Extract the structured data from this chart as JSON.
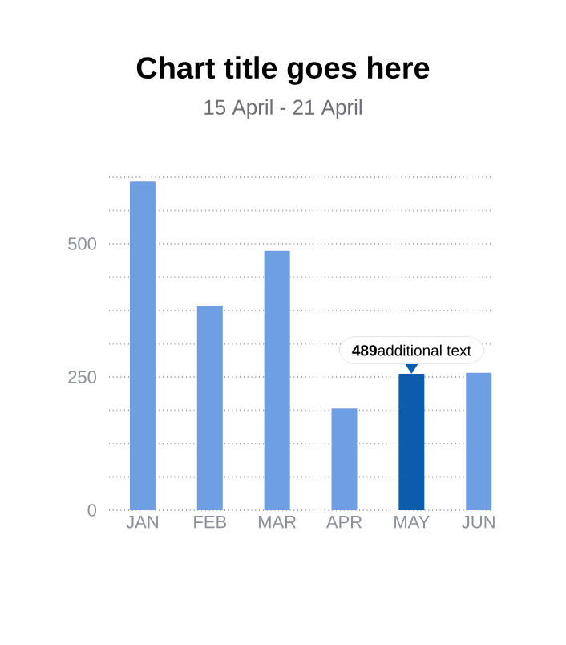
{
  "chart_data": {
    "type": "bar",
    "title": "Chart title goes here",
    "subtitle": "15 April - 21 April",
    "categories": [
      "JAN",
      "FEB",
      "MAR",
      "APR",
      "MAY",
      "JUN"
    ],
    "values": [
      617,
      384,
      487,
      191,
      256,
      258
    ],
    "colors": [
      "#6f9fe3",
      "#6f9fe3",
      "#6f9fe3",
      "#6f9fe3",
      "#0b5cad",
      "#6f9fe3"
    ],
    "ylim": [
      0,
      625
    ],
    "yticks": [
      0,
      {
        "value": 62.5,
        "label": null
      },
      {
        "value": 125,
        "label": null
      },
      {
        "value": 187.5,
        "label": null
      },
      250,
      {
        "value": 312.5,
        "label": null
      },
      {
        "value": 375,
        "label": null
      },
      {
        "value": 437.5,
        "label": null
      },
      500,
      {
        "value": 562.5,
        "label": null
      },
      {
        "value": 625,
        "label": null
      }
    ],
    "grid": "y",
    "annotations": [
      {
        "text": "**489**additional text",
        "x": "MAY",
        "y": 256
      }
    ]
  }
}
